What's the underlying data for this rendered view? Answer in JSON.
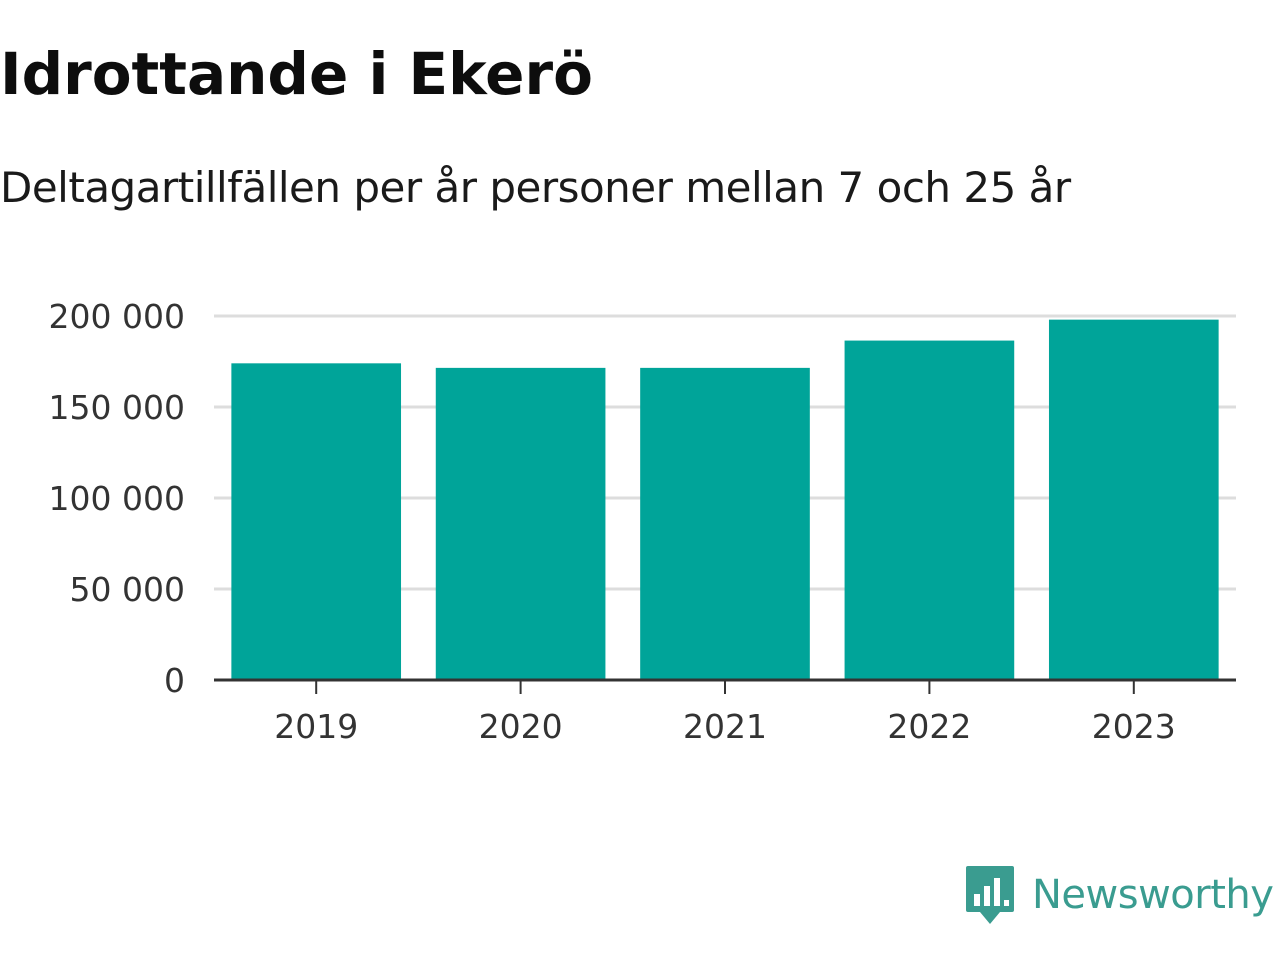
{
  "brand": {
    "name": "Newsworthy",
    "icon": "newsworthy-logo-icon",
    "color": "#3a9c90"
  },
  "chart_data": {
    "type": "bar",
    "title": "Idrottande i Ekerö",
    "subtitle": "Deltagartillfällen per år personer mellan 7 och 25 år",
    "xlabel": "",
    "ylabel": "",
    "categories": [
      "2019",
      "2020",
      "2021",
      "2022",
      "2023"
    ],
    "values": [
      174000,
      171500,
      171500,
      186500,
      198000
    ],
    "ylim": [
      0,
      200000
    ],
    "yticks": [
      0,
      50000,
      100000,
      150000,
      200000
    ],
    "ytick_labels": [
      "0",
      "50 000",
      "100 000",
      "150 000",
      "200 000"
    ],
    "grid": true,
    "legend": "none",
    "bar_color": "#00a499"
  }
}
